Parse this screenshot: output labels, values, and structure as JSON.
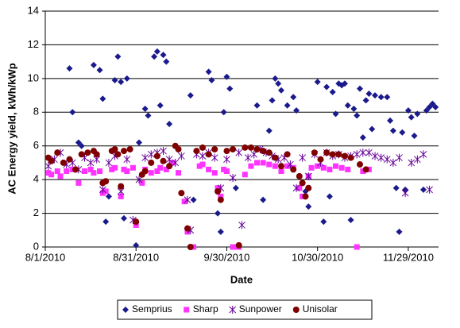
{
  "chart_data": {
    "type": "scatter",
    "x_label": "Date",
    "y_label": "AC Energy yield, kWh/kWp",
    "xlim": [
      "8/1/2010",
      "12/9/2010"
    ],
    "xticks": [
      "8/1/2010",
      "8/31/2010",
      "9/30/2010",
      "10/30/2010",
      "11/29/2010"
    ],
    "ylim": [
      0,
      14
    ],
    "yticks": [
      0,
      2,
      4,
      6,
      8,
      10,
      12,
      14
    ],
    "grid": true,
    "legend": "bottom",
    "series": [
      {
        "name": "Semprius",
        "color": "#1a1a8c",
        "marker": "diamond",
        "x": [
          "8/9/2010",
          "8/10/2010",
          "8/12/2010",
          "8/13/2010",
          "8/17/2010",
          "8/19/2010",
          "8/20/2010",
          "8/21/2010",
          "8/22/2010",
          "8/24/2010",
          "8/25/2010",
          "8/26/2010",
          "8/27/2010",
          "8/28/2010",
          "8/31/2010",
          "9/1/2010",
          "9/3/2010",
          "9/4/2010",
          "9/6/2010",
          "9/7/2010",
          "9/8/2010",
          "9/9/2010",
          "9/10/2010",
          "9/11/2010",
          "9/18/2010",
          "9/19/2010",
          "9/24/2010",
          "9/25/2010",
          "9/27/2010",
          "9/28/2010",
          "9/29/2010",
          "9/30/2010",
          "10/1/2010",
          "10/3/2010",
          "10/10/2010",
          "10/12/2010",
          "10/14/2010",
          "10/15/2010",
          "10/16/2010",
          "10/17/2010",
          "10/18/2010",
          "10/20/2010",
          "10/22/2010",
          "10/23/2010",
          "10/26/2010",
          "10/27/2010",
          "10/30/2010",
          "11/1/2010",
          "11/2/2010",
          "11/3/2010",
          "11/4/2010",
          "11/5/2010",
          "11/6/2010",
          "11/7/2010",
          "11/8/2010",
          "11/9/2010",
          "11/10/2010",
          "11/11/2010",
          "11/12/2010",
          "11/13/2010",
          "11/14/2010",
          "11/15/2010",
          "11/16/2010",
          "11/17/2010",
          "11/18/2010",
          "11/20/2010",
          "11/22/2010",
          "11/23/2010",
          "11/24/2010",
          "11/25/2010",
          "11/26/2010",
          "11/27/2010",
          "11/28/2010",
          "11/29/2010",
          "11/30/2010",
          "12/1/2010",
          "12/2/2010",
          "12/4/2010",
          "12/5/2010",
          "12/6/2010",
          "12/7/2010",
          "12/8/2010"
        ],
        "values": [
          10.6,
          8.0,
          6.2,
          6.0,
          10.8,
          10.5,
          8.8,
          1.5,
          3.0,
          9.9,
          11.3,
          9.8,
          1.7,
          10.0,
          0.1,
          6.2,
          8.2,
          7.8,
          11.3,
          11.6,
          8.4,
          11.4,
          11.0,
          7.3,
          9.0,
          2.8,
          10.4,
          9.9,
          2.0,
          0.9,
          8.0,
          10.1,
          9.4,
          3.5,
          8.4,
          2.8,
          6.9,
          8.7,
          10.0,
          9.7,
          9.3,
          8.4,
          8.9,
          8.1,
          3.3,
          2.4,
          9.8,
          1.5,
          9.5,
          3.0,
          9.2,
          7.9,
          9.7,
          9.6,
          9.7,
          8.4,
          1.6,
          8.2,
          7.8,
          9.4,
          6.5,
          8.7,
          9.1,
          7.0,
          9.0,
          8.9,
          8.9,
          7.5,
          6.9,
          3.5,
          0.9,
          6.8,
          3.4,
          8.1,
          7.7,
          6.6,
          7.9,
          3.4,
          8.1,
          8.3,
          8.5,
          8.3
        ]
      },
      {
        "name": "Sharp",
        "color": "#ff33ff",
        "marker": "square",
        "x": [
          "8/2/2010",
          "8/3/2010",
          "8/5/2010",
          "8/6/2010",
          "8/8/2010",
          "8/10/2010",
          "8/12/2010",
          "8/14/2010",
          "8/16/2010",
          "8/17/2010",
          "8/19/2010",
          "8/20/2010",
          "8/21/2010",
          "8/23/2010",
          "8/24/2010",
          "8/26/2010",
          "8/27/2010",
          "8/28/2010",
          "8/30/2010",
          "8/31/2010",
          "9/2/2010",
          "9/3/2010",
          "9/5/2010",
          "9/7/2010",
          "9/8/2010",
          "9/10/2010",
          "9/12/2010",
          "9/14/2010",
          "9/16/2010",
          "9/17/2010",
          "9/19/2010",
          "9/21/2010",
          "9/22/2010",
          "9/24/2010",
          "9/26/2010",
          "9/27/2010",
          "9/28/2010",
          "9/29/2010",
          "9/30/2010",
          "10/2/2010",
          "10/3/2010",
          "10/4/2010",
          "10/6/2010",
          "10/8/2010",
          "10/10/2010",
          "10/12/2010",
          "10/14/2010",
          "10/16/2010",
          "10/18/2010",
          "10/20/2010",
          "10/22/2010",
          "10/24/2010",
          "10/25/2010",
          "10/27/2010",
          "10/28/2010",
          "10/30/2010",
          "11/1/2010",
          "11/3/2010",
          "11/5/2010",
          "11/7/2010",
          "11/9/2010",
          "11/12/2010",
          "11/14/2010",
          "11/16/2010"
        ],
        "values": [
          4.4,
          4.3,
          4.5,
          4.2,
          4.5,
          4.6,
          3.8,
          4.5,
          4.6,
          4.4,
          4.5,
          3.2,
          3.3,
          4.6,
          4.7,
          3.0,
          4.6,
          4.5,
          4.7,
          1.3,
          3.8,
          4.6,
          4.4,
          4.5,
          4.7,
          4.6,
          5.0,
          4.4,
          2.7,
          0.9,
          0.0,
          4.8,
          4.9,
          4.6,
          4.4,
          3.5,
          3.0,
          4.6,
          4.5,
          0.0,
          0.0,
          0.0,
          4.3,
          4.8,
          5.0,
          5.0,
          4.9,
          4.8,
          4.5,
          4.8,
          4.7,
          3.5,
          3.0,
          4.2,
          4.7,
          4.8,
          4.7,
          4.6,
          4.8,
          4.7,
          4.6,
          0.0,
          4.5,
          4.6
        ]
      },
      {
        "name": "Sunpower",
        "color": "#660099",
        "marker": "star",
        "x": [
          "8/2/2010",
          "8/4/2010",
          "8/6/2010",
          "8/8/2010",
          "8/10/2010",
          "8/12/2010",
          "8/14/2010",
          "8/16/2010",
          "8/18/2010",
          "8/20/2010",
          "8/22/2010",
          "8/24/2010",
          "8/26/2010",
          "8/28/2010",
          "8/30/2010",
          "9/1/2010",
          "9/3/2010",
          "9/5/2010",
          "9/7/2010",
          "9/9/2010",
          "9/11/2010",
          "9/13/2010",
          "9/15/2010",
          "9/17/2010",
          "9/18/2010",
          "9/20/2010",
          "9/22/2010",
          "9/24/2010",
          "9/26/2010",
          "9/28/2010",
          "9/30/2010",
          "10/2/2010",
          "10/4/2010",
          "10/5/2010",
          "10/7/2010",
          "10/9/2010",
          "10/11/2010",
          "10/13/2010",
          "10/15/2010",
          "10/17/2010",
          "10/19/2010",
          "10/21/2010",
          "10/23/2010",
          "10/25/2010",
          "10/27/2010",
          "10/29/2010",
          "10/31/2010",
          "11/2/2010",
          "11/4/2010",
          "11/6/2010",
          "11/8/2010",
          "11/10/2010",
          "11/12/2010",
          "11/14/2010",
          "11/16/2010",
          "11/18/2010",
          "11/20/2010",
          "11/22/2010",
          "11/24/2010",
          "11/26/2010",
          "11/28/2010",
          "11/30/2010",
          "12/2/2010",
          "12/4/2010",
          "12/6/2010"
        ],
        "values": [
          4.8,
          5.2,
          5.6,
          4.9,
          5.0,
          4.6,
          5.3,
          5.0,
          5.2,
          3.4,
          5.0,
          5.4,
          3.3,
          5.2,
          1.6,
          4.0,
          5.3,
          5.5,
          5.6,
          5.7,
          5.2,
          5.0,
          5.4,
          2.8,
          1.0,
          5.5,
          5.4,
          5.6,
          5.3,
          3.5,
          5.2,
          4.1,
          5.6,
          1.3,
          5.3,
          5.5,
          5.8,
          5.6,
          5.4,
          5.2,
          5.3,
          4.9,
          3.5,
          5.3,
          4.2,
          5.5,
          5.0,
          5.6,
          5.4,
          5.5,
          5.3,
          5.4,
          5.5,
          5.6,
          5.6,
          5.4,
          5.3,
          5.2,
          5.0,
          5.3,
          3.2,
          5.0,
          5.2,
          5.5,
          3.4
        ]
      },
      {
        "name": "Unisolar",
        "color": "#800000",
        "marker": "circle",
        "x": [
          "8/2/2010",
          "8/3/2010",
          "8/5/2010",
          "8/7/2010",
          "8/9/2010",
          "8/11/2010",
          "8/13/2010",
          "8/15/2010",
          "8/17/2010",
          "8/18/2010",
          "8/20/2010",
          "8/21/2010",
          "8/23/2010",
          "8/24/2010",
          "8/25/2010",
          "8/26/2010",
          "8/27/2010",
          "8/29/2010",
          "8/31/2010",
          "9/2/2010",
          "9/3/2010",
          "9/5/2010",
          "9/7/2010",
          "9/9/2010",
          "9/11/2010",
          "9/13/2010",
          "9/14/2010",
          "9/15/2010",
          "9/17/2010",
          "9/18/2010",
          "9/20/2010",
          "9/22/2010",
          "9/24/2010",
          "9/26/2010",
          "9/27/2010",
          "9/28/2010",
          "9/30/2010",
          "10/2/2010",
          "10/4/2010",
          "10/6/2010",
          "10/8/2010",
          "10/10/2010",
          "10/12/2010",
          "10/14/2010",
          "10/16/2010",
          "10/18/2010",
          "10/20/2010",
          "10/22/2010",
          "10/24/2010",
          "10/25/2010",
          "10/26/2010",
          "10/27/2010",
          "10/29/2010",
          "10/31/2010",
          "11/2/2010",
          "11/4/2010",
          "11/6/2010",
          "11/8/2010",
          "11/10/2010",
          "11/13/2010",
          "11/15/2010"
        ],
        "values": [
          5.3,
          5.1,
          5.6,
          5.0,
          5.2,
          4.6,
          5.5,
          5.6,
          5.7,
          5.5,
          3.8,
          3.9,
          5.7,
          5.8,
          5.5,
          3.6,
          5.7,
          5.8,
          1.5,
          4.3,
          4.5,
          5.0,
          5.4,
          5.1,
          4.8,
          6.0,
          5.8,
          3.2,
          1.1,
          0.0,
          5.7,
          5.9,
          5.5,
          5.8,
          3.3,
          2.8,
          5.7,
          5.8,
          0.1,
          5.9,
          5.9,
          5.8,
          5.7,
          5.6,
          5.3,
          4.8,
          5.5,
          4.6,
          4.2,
          3.8,
          3.0,
          3.5,
          5.6,
          5.2,
          5.6,
          5.5,
          5.5,
          5.4,
          5.3,
          4.9,
          4.6
        ]
      }
    ]
  }
}
